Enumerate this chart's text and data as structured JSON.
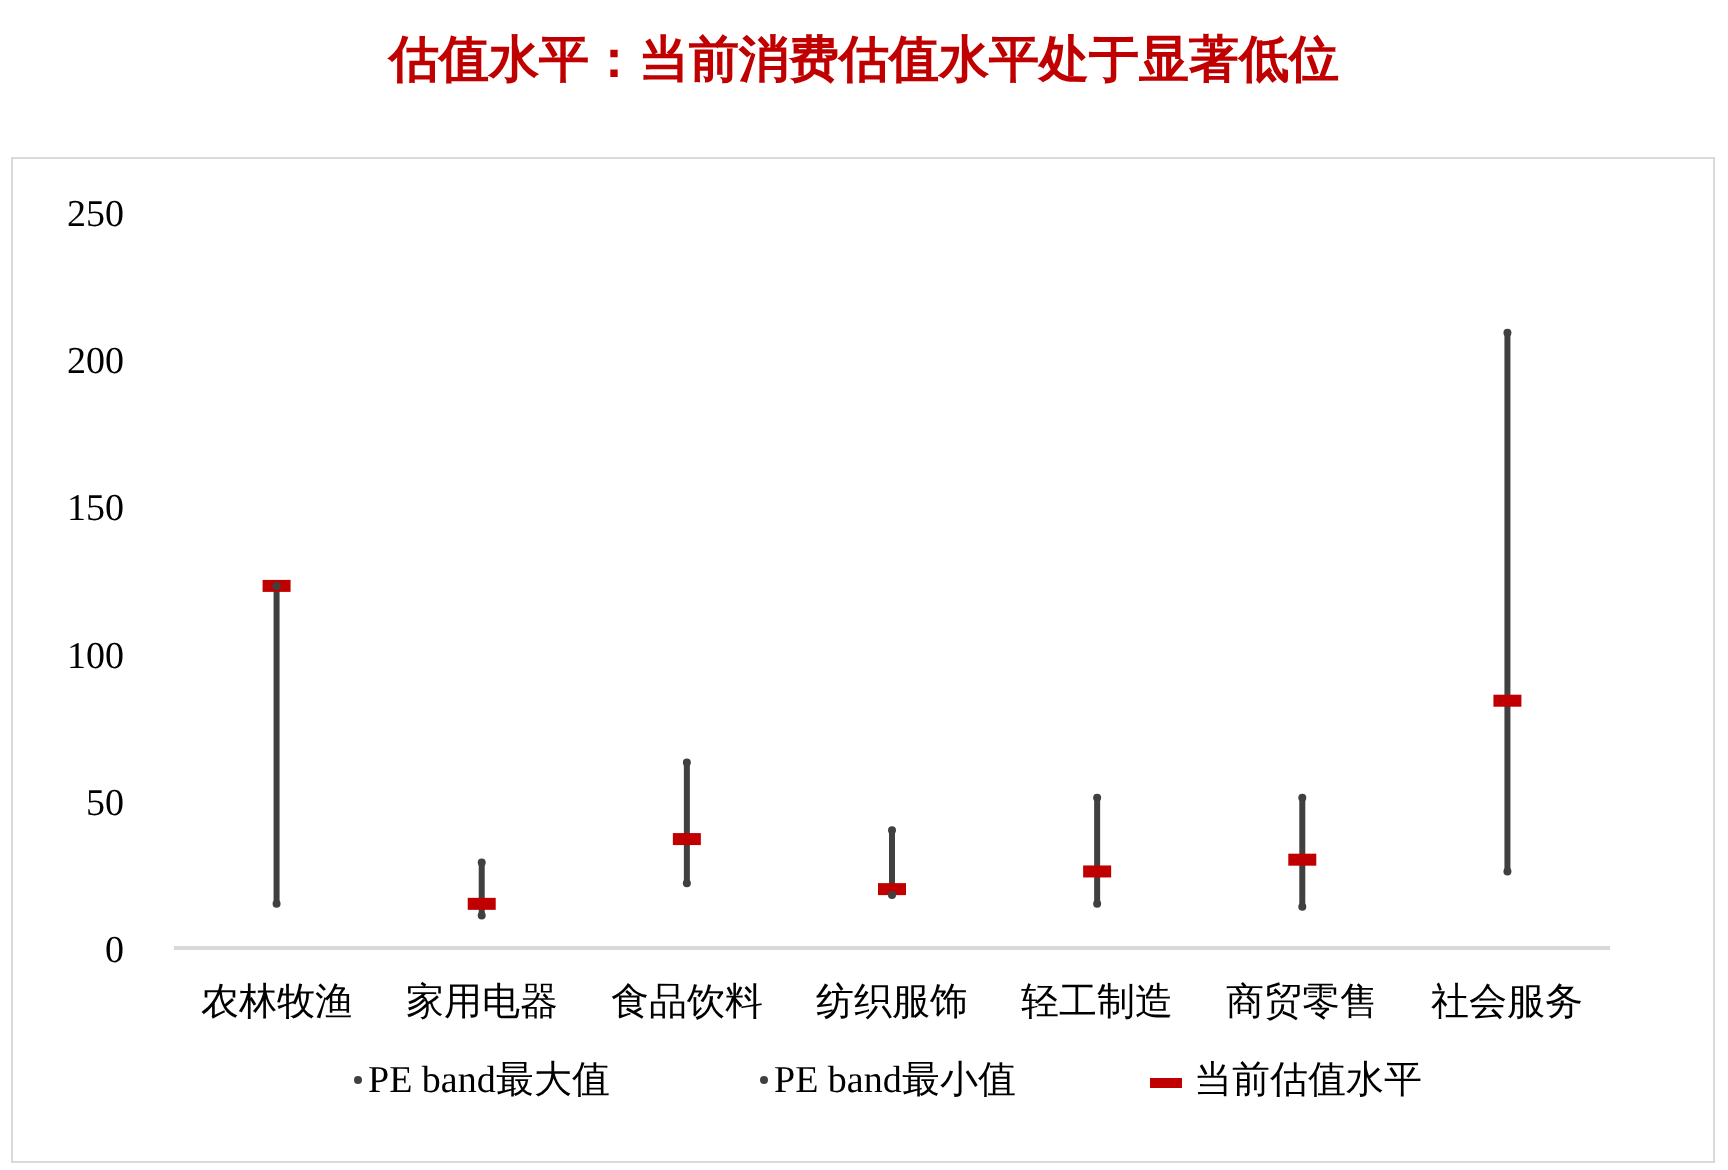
{
  "chart_data": {
    "type": "scatter",
    "title": "估值水平：当前消费估值水平处于显著低位",
    "categories": [
      "农林牧渔",
      "家用电器",
      "食品饮料",
      "纺织服饰",
      "轻工制造",
      "商贸零售",
      "社会服务"
    ],
    "series": [
      {
        "type": "bar",
        "color": "#404040",
        "base": [
          15,
          11,
          22,
          18,
          15,
          14,
          26
        ],
        "values": [
          108,
          18,
          41,
          22,
          36,
          37,
          183
        ]
      },
      {
        "name": "PE band最大值",
        "marker": "circle",
        "color": "#404040",
        "values": [
          123,
          29,
          63,
          40,
          51,
          51,
          209
        ]
      },
      {
        "name": "PE band最小值",
        "marker": "circle",
        "color": "#404040",
        "values": [
          15,
          11,
          22,
          18,
          15,
          14,
          26
        ]
      },
      {
        "name": "当前估值水平",
        "marker": "square",
        "color": "#c00000",
        "values": [
          123,
          15,
          37,
          20,
          26,
          30,
          84
        ]
      }
    ],
    "ylim": [
      0,
      250
    ],
    "yticks": [
      0,
      50,
      100,
      150,
      200,
      250
    ],
    "grid": false,
    "legend": "bottom"
  }
}
